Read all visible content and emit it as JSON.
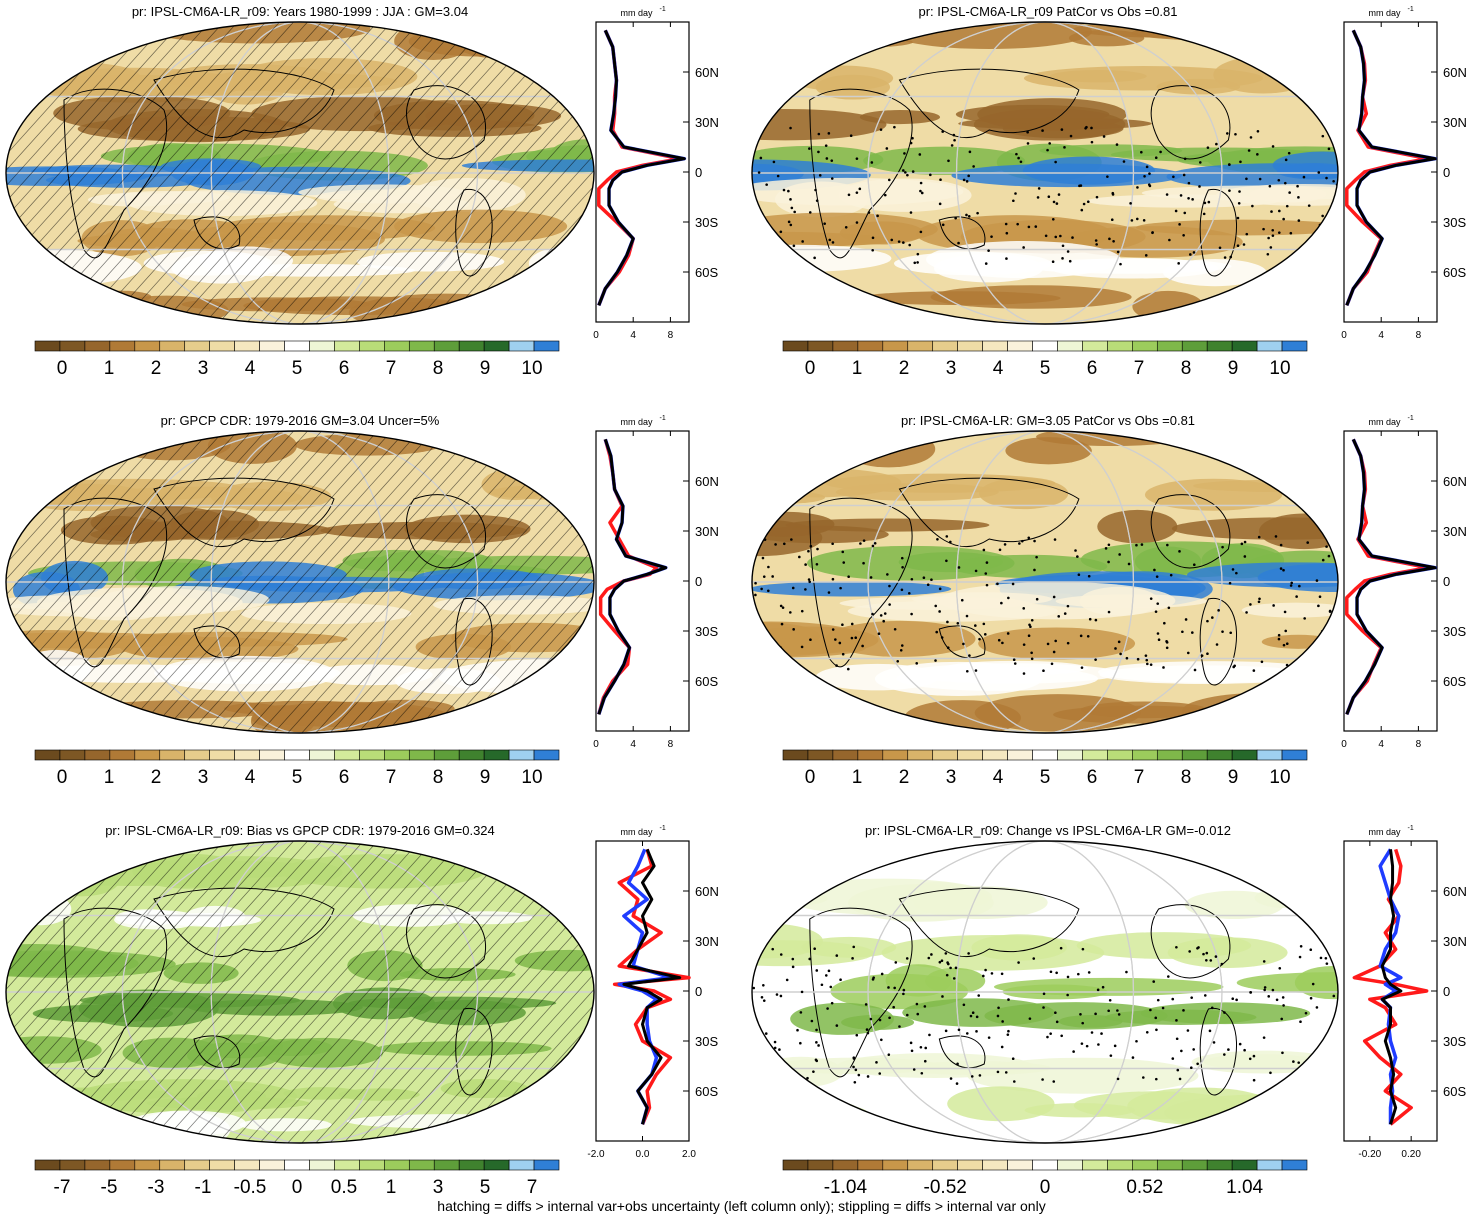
{
  "footnote": "hatching = diffs > internal var+obs uncertainty (left column only); stippling = diffs > internal var only",
  "colors": {
    "ramp": [
      "#6b4a1e",
      "#7d5724",
      "#96662c",
      "#b07a36",
      "#c8974a",
      "#d9b46a",
      "#e6cd8c",
      "#efdca6",
      "#f5e8c0",
      "#faf2db",
      "#ffffff",
      "#eef6d6",
      "#d3ea9b",
      "#b9dc78",
      "#9ccc5c",
      "#7fb84a",
      "#5e9e3a",
      "#3f822e",
      "#26692a",
      "#9fd0f0",
      "#2f7fd6"
    ],
    "obs_line": "#ff1a1a",
    "model_line": "#1f3cff",
    "mmm_line": "#000000"
  },
  "chart_data": [
    {
      "id": "p1",
      "type": "heatmap",
      "title": "pr: IPSL-CM6A-LR_r09: Years 1980-1999 : JJA : GM=3.04",
      "colorbar_ticks": [
        "0",
        "1",
        "2",
        "3",
        "4",
        "5",
        "6",
        "7",
        "8",
        "9",
        "10"
      ],
      "overlay": "hatching",
      "zonal": {
        "units": "mm day",
        "units_sup": "-1",
        "xticks": [
          "0",
          "4",
          "8"
        ],
        "xlim": [
          0,
          10
        ],
        "lat_ticks": [
          "60N",
          "30N",
          "0",
          "30S",
          "60S"
        ],
        "lat": [
          85,
          75,
          65,
          55,
          45,
          35,
          25,
          15,
          8,
          4,
          0,
          -5,
          -10,
          -20,
          -30,
          -40,
          -50,
          -60,
          -70,
          -80
        ],
        "series": [
          {
            "name": "",
            "values": [
              1.0,
              1.8,
              2.0,
              2.2,
              2.0,
              2.0,
              1.8,
              2.8,
              9.0,
              5.0,
              2.2,
              1.2,
              0.3,
              0.3,
              2.2,
              4.0,
              3.5,
              2.5,
              1.0,
              0.3
            ]
          },
          {
            "name": "",
            "values": [
              1.0,
              1.8,
              2.0,
              2.2,
              2.1,
              1.9,
              1.6,
              3.0,
              9.5,
              5.5,
              2.8,
              1.8,
              1.4,
              1.4,
              2.4,
              4.0,
              3.3,
              2.3,
              1.0,
              0.3
            ]
          },
          {
            "name": "",
            "values": [
              1.0,
              1.8,
              2.0,
              2.2,
              2.1,
              1.9,
              1.6,
              3.0,
              9.5,
              5.5,
              2.8,
              1.8,
              1.4,
              1.4,
              2.4,
              4.0,
              3.3,
              2.3,
              1.0,
              0.3
            ]
          }
        ]
      }
    },
    {
      "id": "p2",
      "type": "heatmap",
      "title": "pr: IPSL-CM6A-LR_r09 PatCor vs Obs =0.81",
      "colorbar_ticks": [
        "0",
        "1",
        "2",
        "3",
        "4",
        "5",
        "6",
        "7",
        "8",
        "9",
        "10"
      ],
      "overlay": "stippling",
      "zonal": {
        "units": "mm day",
        "units_sup": "-1",
        "xticks": [
          "0",
          "4",
          "8"
        ],
        "xlim": [
          0,
          10
        ],
        "lat_ticks": [
          "60N",
          "30N",
          "0",
          "30S",
          "60S"
        ],
        "lat": [
          85,
          75,
          65,
          55,
          45,
          35,
          25,
          15,
          8,
          4,
          0,
          -5,
          -10,
          -20,
          -30,
          -40,
          -50,
          -60,
          -70,
          -80
        ],
        "series": [
          {
            "name": "",
            "values": [
              1.0,
              1.8,
              2.2,
              2.3,
              2.0,
              2.4,
              1.5,
              2.6,
              9.0,
              5.0,
              2.2,
              1.2,
              0.3,
              0.3,
              2.0,
              4.0,
              3.2,
              2.5,
              1.0,
              0.3
            ]
          },
          {
            "name": "",
            "values": [
              1.0,
              1.8,
              2.1,
              2.2,
              2.0,
              1.9,
              1.6,
              3.0,
              9.8,
              5.6,
              2.8,
              1.8,
              1.4,
              1.4,
              2.4,
              4.1,
              3.3,
              2.3,
              1.0,
              0.3
            ]
          },
          {
            "name": "",
            "values": [
              1.0,
              1.8,
              2.1,
              2.2,
              2.0,
              1.9,
              1.6,
              3.0,
              9.8,
              5.6,
              2.8,
              1.8,
              1.4,
              1.4,
              2.4,
              4.1,
              3.3,
              2.3,
              1.0,
              0.3
            ]
          }
        ]
      }
    },
    {
      "id": "p3",
      "type": "heatmap",
      "title": "pr: GPCP CDR: 1979-2016 GM=3.04 Uncer=5%",
      "colorbar_ticks": [
        "0",
        "1",
        "2",
        "3",
        "4",
        "5",
        "6",
        "7",
        "8",
        "9",
        "10"
      ],
      "overlay": "hatching",
      "zonal": {
        "units": "mm day",
        "units_sup": "-1",
        "xticks": [
          "0",
          "4",
          "8"
        ],
        "xlim": [
          0,
          10
        ],
        "lat": [
          85,
          75,
          65,
          55,
          45,
          35,
          25,
          15,
          8,
          4,
          0,
          -5,
          -10,
          -20,
          -30,
          -40,
          -50,
          -60,
          -70,
          -80
        ],
        "lat_ticks": [
          "60N",
          "30N",
          "0",
          "30S",
          "60S"
        ],
        "series": [
          {
            "name": "",
            "values": [
              1.0,
              1.5,
              1.8,
              2.0,
              2.8,
              1.5,
              2.5,
              3.5,
              6.5,
              5.8,
              3.0,
              1.2,
              0.5,
              0.5,
              2.0,
              3.6,
              3.4,
              1.8,
              0.8,
              0.3
            ]
          },
          {
            "name": "",
            "values": [
              1.0,
              1.6,
              1.8,
              2.0,
              2.9,
              2.8,
              2.2,
              3.2,
              7.5,
              5.5,
              3.0,
              2.0,
              1.5,
              1.5,
              2.4,
              3.6,
              3.0,
              2.0,
              0.9,
              0.3
            ]
          },
          {
            "name": "",
            "values": [
              1.0,
              1.6,
              1.8,
              2.0,
              2.9,
              2.8,
              2.2,
              3.2,
              7.5,
              5.5,
              3.0,
              2.0,
              1.5,
              1.5,
              2.4,
              3.6,
              3.0,
              2.0,
              0.9,
              0.3
            ]
          }
        ]
      }
    },
    {
      "id": "p4",
      "type": "heatmap",
      "title": "pr: IPSL-CM6A-LR: GM=3.05 PatCor vs Obs =0.81",
      "colorbar_ticks": [
        "0",
        "1",
        "2",
        "3",
        "4",
        "5",
        "6",
        "7",
        "8",
        "9",
        "10"
      ],
      "overlay": "stippling",
      "zonal": {
        "units": "mm day",
        "units_sup": "-1",
        "xticks": [
          "0",
          "4",
          "8"
        ],
        "xlim": [
          0,
          10
        ],
        "lat": [
          85,
          75,
          65,
          55,
          45,
          35,
          25,
          15,
          8,
          4,
          0,
          -5,
          -10,
          -20,
          -30,
          -40,
          -50,
          -60,
          -70,
          -80
        ],
        "lat_ticks": [
          "60N",
          "30N",
          "0",
          "30S",
          "60S"
        ],
        "series": [
          {
            "name": "",
            "values": [
              1.0,
              1.8,
              2.2,
              2.3,
              2.0,
              2.4,
              1.5,
              2.6,
              9.0,
              5.0,
              2.2,
              1.2,
              0.3,
              0.3,
              2.0,
              4.0,
              3.2,
              2.5,
              1.0,
              0.3
            ]
          },
          {
            "name": "",
            "values": [
              1.0,
              1.8,
              2.1,
              2.2,
              2.0,
              1.9,
              1.6,
              3.0,
              9.8,
              5.6,
              2.8,
              1.8,
              1.4,
              1.4,
              2.4,
              4.1,
              3.3,
              2.3,
              1.0,
              0.3
            ]
          },
          {
            "name": "",
            "values": [
              1.0,
              1.8,
              2.1,
              2.2,
              2.0,
              1.9,
              1.6,
              3.0,
              9.8,
              5.6,
              2.8,
              1.8,
              1.4,
              1.4,
              2.4,
              4.1,
              3.3,
              2.3,
              1.0,
              0.3
            ]
          }
        ]
      }
    },
    {
      "id": "p5",
      "type": "heatmap",
      "title": "pr: IPSL-CM6A-LR_r09: Bias vs GPCP CDR: 1979-2016 GM=0.324",
      "colorbar_ticks": [
        "-7",
        "-5",
        "-3",
        "-1",
        "-0.5",
        "0",
        "0.5",
        "1",
        "3",
        "5",
        "7"
      ],
      "overlay": "hatching",
      "zonal": {
        "units": "mm day",
        "units_sup": "-1",
        "xticks": [
          "-2.0",
          "0.0",
          "2.0"
        ],
        "xlim": [
          -2,
          2
        ],
        "lat": [
          85,
          75,
          65,
          55,
          45,
          35,
          25,
          15,
          8,
          4,
          0,
          -5,
          -10,
          -20,
          -30,
          -40,
          -50,
          -60,
          -70,
          -80
        ],
        "lat_ticks": [
          "60N",
          "30N",
          "0",
          "30S",
          "60S"
        ],
        "series": [
          {
            "name": "",
            "values": [
              0.2,
              0.4,
              -1.0,
              -0.2,
              -0.4,
              0.8,
              -0.2,
              -1.0,
              2.0,
              -1.2,
              0.5,
              1.2,
              0.2,
              -0.3,
              0.0,
              1.2,
              0.6,
              0.2,
              0.3,
              0.0
            ]
          },
          {
            "name": "",
            "values": [
              0.1,
              -0.2,
              -0.6,
              0.2,
              -0.8,
              0.0,
              -0.2,
              -0.4,
              1.2,
              -1.0,
              0.0,
              0.6,
              0.2,
              0.2,
              0.3,
              0.6,
              0.4,
              -0.2,
              0.2,
              0.0
            ]
          },
          {
            "name": "",
            "values": [
              0.2,
              0.5,
              0.0,
              0.4,
              0.0,
              0.2,
              -0.2,
              -0.6,
              1.6,
              -0.8,
              0.2,
              0.8,
              0.2,
              0.0,
              0.2,
              0.8,
              0.4,
              -0.2,
              0.2,
              0.0
            ]
          }
        ]
      }
    },
    {
      "id": "p6",
      "type": "heatmap",
      "title": "pr: IPSL-CM6A-LR_r09: Change vs IPSL-CM6A-LR GM=-0.012",
      "colorbar_ticks": [
        "-1.04",
        "-0.52",
        "0",
        "0.52",
        "1.04"
      ],
      "overlay": "stippling",
      "zonal": {
        "units": "mm day",
        "units_sup": "-1",
        "xticks": [
          "-0.20",
          "0.20"
        ],
        "xlim": [
          -0.45,
          0.45
        ],
        "lat": [
          85,
          75,
          65,
          55,
          45,
          35,
          25,
          15,
          8,
          4,
          0,
          -5,
          -10,
          -20,
          -30,
          -40,
          -50,
          -60,
          -70,
          -80
        ],
        "lat_ticks": [
          "60N",
          "30N",
          "0",
          "30S",
          "60S"
        ],
        "series": [
          {
            "name": "",
            "values": [
              0.05,
              0.1,
              0.08,
              -0.02,
              0.08,
              -0.05,
              0.05,
              -0.1,
              -0.35,
              0.05,
              0.35,
              -0.2,
              -0.05,
              0.05,
              -0.25,
              -0.1,
              0.1,
              -0.05,
              0.2,
              0.0
            ]
          },
          {
            "name": "",
            "values": [
              0.0,
              -0.1,
              -0.05,
              0.0,
              0.08,
              0.05,
              -0.05,
              -0.1,
              0.1,
              -0.05,
              0.05,
              -0.08,
              0.0,
              -0.02,
              0.0,
              0.05,
              0.0,
              0.02,
              0.0,
              0.0
            ]
          },
          {
            "name": "",
            "values": [
              0.0,
              0.02,
              0.02,
              0.0,
              0.03,
              0.0,
              0.0,
              -0.08,
              -0.05,
              0.0,
              0.1,
              -0.08,
              0.0,
              0.0,
              -0.05,
              0.0,
              0.03,
              0.0,
              0.05,
              0.0
            ]
          }
        ]
      }
    }
  ]
}
